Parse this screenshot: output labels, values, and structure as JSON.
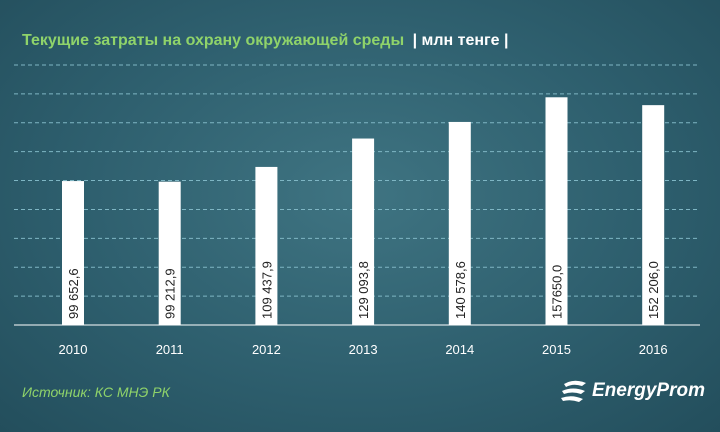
{
  "header": {
    "title": "Текущие затраты на охрану окружающей среды",
    "unit": "| млн тенге |"
  },
  "footer": {
    "source": "Источник: КС МНЭ РК",
    "brand": "EnergyProm",
    "brand_icon": "energyprom-logo-icon"
  },
  "colors": {
    "title": "#8fd36a",
    "bar": "#ffffff",
    "grid": "#7fb6c4",
    "background": "#2e5f6e"
  },
  "chart_data": {
    "type": "bar",
    "categories": [
      "2010",
      "2011",
      "2012",
      "2013",
      "2014",
      "2015",
      "2016"
    ],
    "values": [
      99652.6,
      99212.9,
      109437.9,
      129093.8,
      140578.6,
      157650.0,
      152206.0
    ],
    "labels": [
      "99 652,6",
      "99 212,9",
      "109 437,9",
      "129 093,8",
      "140 578,6",
      "157650,0",
      "152 206,0"
    ],
    "title": "Текущие затраты на охрану окружающей среды",
    "ylabel": "",
    "ylim": [
      0,
      180000
    ],
    "grid": true,
    "grid_style": "dashed"
  }
}
